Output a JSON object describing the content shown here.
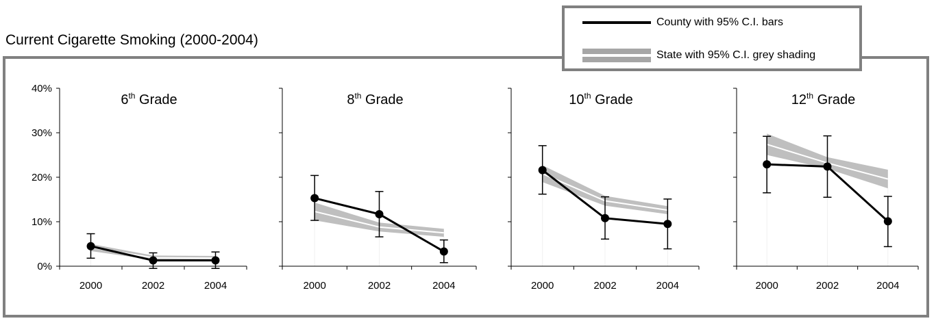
{
  "title": "Current Cigarette Smoking (2000-2004)",
  "legend": {
    "county_label": "County with 95% C.I. bars",
    "state_label": "State with 95% C.I. grey shading"
  },
  "colors": {
    "county_line": "#000000",
    "state_band": "#bfbfbf",
    "state_line": "#ffffff",
    "frame": "#808080"
  },
  "chart_data": [
    {
      "type": "line",
      "title_main": "6",
      "title_sup": "th",
      "title_rest": " Grade",
      "x": [
        "2000",
        "2002",
        "2004"
      ],
      "ylim": [
        0,
        40
      ],
      "yticks": [
        "0%",
        "10%",
        "20%",
        "30%",
        "40%"
      ],
      "series": [
        {
          "name": "County with 95% C.I. bars",
          "values": [
            4.5,
            1.3,
            1.3
          ],
          "ci_low": [
            1.8,
            -0.5,
            -0.5
          ],
          "ci_high": [
            7.3,
            3.0,
            3.2
          ]
        },
        {
          "name": "State with 95% C.I. grey shading",
          "values": [
            4.2,
            1.9,
            1.8
          ],
          "ci_low": [
            3.4,
            1.4,
            1.3
          ],
          "ci_high": [
            5.0,
            2.4,
            2.3
          ]
        }
      ]
    },
    {
      "type": "line",
      "title_main": "8",
      "title_sup": "th",
      "title_rest": " Grade",
      "x": [
        "2000",
        "2002",
        "2004"
      ],
      "ylim": [
        0,
        40
      ],
      "yticks": [],
      "series": [
        {
          "name": "County with 95% C.I. bars",
          "values": [
            15.3,
            11.7,
            3.3
          ],
          "ci_low": [
            10.3,
            6.6,
            0.8
          ],
          "ci_high": [
            20.4,
            16.8,
            5.9
          ]
        },
        {
          "name": "State with 95% C.I. grey shading",
          "values": [
            12.3,
            8.8,
            7.5
          ],
          "ci_low": [
            10.3,
            7.8,
            6.6
          ],
          "ci_high": [
            14.3,
            9.8,
            8.4
          ]
        }
      ]
    },
    {
      "type": "line",
      "title_main": "10",
      "title_sup": "th",
      "title_rest": " Grade",
      "x": [
        "2000",
        "2002",
        "2004"
      ],
      "ylim": [
        0,
        40
      ],
      "yticks": [],
      "series": [
        {
          "name": "County with 95% C.I. bars",
          "values": [
            21.6,
            10.8,
            9.5
          ],
          "ci_low": [
            16.2,
            6.1,
            3.9
          ],
          "ci_high": [
            27.1,
            15.6,
            15.1
          ]
        },
        {
          "name": "State with 95% C.I. grey shading",
          "values": [
            20.8,
            14.7,
            12.6
          ],
          "ci_low": [
            18.9,
            13.6,
            11.7
          ],
          "ci_high": [
            22.7,
            15.8,
            13.5
          ]
        }
      ]
    },
    {
      "type": "line",
      "title_main": "12",
      "title_sup": "th",
      "title_rest": " Grade",
      "x": [
        "2000",
        "2002",
        "2004"
      ],
      "ylim": [
        0,
        40
      ],
      "yticks": [],
      "series": [
        {
          "name": "County with 95% C.I. bars",
          "values": [
            22.9,
            22.4,
            10.1
          ],
          "ci_low": [
            16.5,
            15.5,
            4.4
          ],
          "ci_high": [
            29.2,
            29.3,
            15.7
          ]
        },
        {
          "name": "State with 95% C.I. grey shading",
          "values": [
            27.4,
            23.2,
            19.6
          ],
          "ci_low": [
            25.0,
            21.9,
            17.5
          ],
          "ci_high": [
            29.8,
            24.5,
            21.7
          ]
        }
      ]
    }
  ]
}
